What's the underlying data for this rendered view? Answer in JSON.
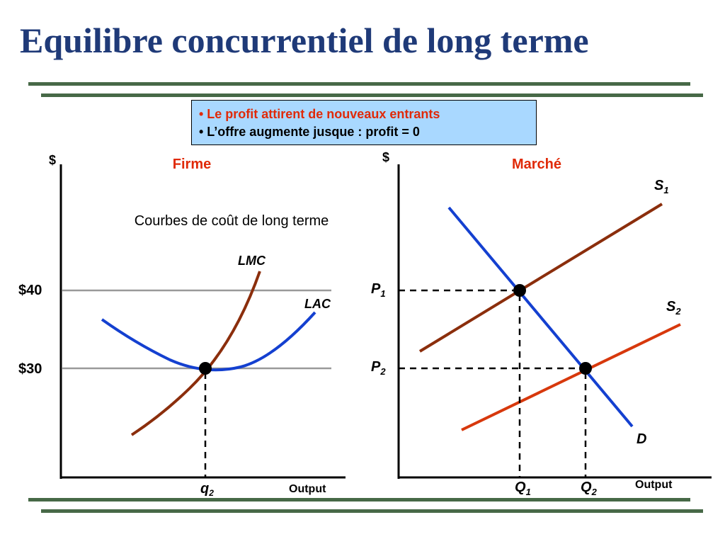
{
  "title": "Equilibre concurrentiel de long terme",
  "notes": [
    "•  Le profit attirent de nouveaux entrants",
    "•  L’offre augmente jusque :  profit = 0"
  ],
  "colors": {
    "title": "#1f3a78",
    "rule": "#476947",
    "note_bg": "#a9d8ff",
    "panel_title": "#e02a08",
    "mc_curve": "#8b2e0c",
    "ac_curve": "#1440d0",
    "s2_curve": "#d7380c",
    "price_line": "#999999"
  },
  "chart_data": [
    {
      "type": "line",
      "title": "Firme",
      "subtitle": "Courbes de coût de long terme",
      "ylabel": "$",
      "xlabel": "Output",
      "price_labels": [
        "$40",
        "$30"
      ],
      "price_values": [
        40,
        30
      ],
      "x_tick": {
        "main": "q",
        "sub": "2"
      },
      "series": [
        {
          "name": "LMC",
          "kind": "marginal cost"
        },
        {
          "name": "LAC",
          "kind": "average cost"
        }
      ],
      "equilibrium": {
        "price": 30,
        "quantity": "q2"
      },
      "grid": false
    },
    {
      "type": "line",
      "title": "Marché",
      "ylabel": "$",
      "xlabel": "Output",
      "series": [
        {
          "name": "S",
          "sub": "1"
        },
        {
          "name": "S",
          "sub": "2"
        },
        {
          "name": "D",
          "sub": ""
        }
      ],
      "price_ticks": [
        {
          "main": "P",
          "sub": "1"
        },
        {
          "main": "P",
          "sub": "2"
        }
      ],
      "quantity_ticks": [
        {
          "main": "Q",
          "sub": "1"
        },
        {
          "main": "Q",
          "sub": "2"
        }
      ],
      "equilibria": [
        {
          "price": "P1",
          "quantity": "Q1",
          "curves": [
            "S1",
            "D"
          ]
        },
        {
          "price": "P2",
          "quantity": "Q2",
          "curves": [
            "S2",
            "D"
          ]
        }
      ],
      "grid": false
    }
  ]
}
